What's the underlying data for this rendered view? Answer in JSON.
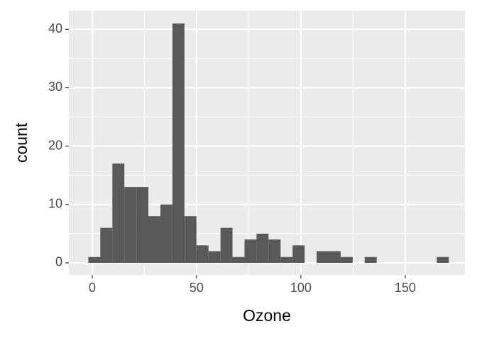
{
  "chart_data": {
    "type": "histogram",
    "x_label": "Ozone",
    "y_label": "count",
    "bins": [
      -1.88,
      3.88,
      9.64,
      15.4,
      21.16,
      26.91,
      32.67,
      38.43,
      44.19,
      49.95,
      55.71,
      61.47,
      67.22,
      72.98,
      78.74,
      84.5,
      90.26,
      96.02,
      101.78,
      107.53,
      113.29,
      119.05,
      124.81,
      130.57,
      136.33,
      142.09,
      147.84,
      153.6,
      159.36,
      165.12,
      170.88
    ],
    "values": [
      1,
      6,
      17,
      13,
      13,
      8,
      10,
      41,
      8,
      3,
      2,
      6,
      1,
      4,
      5,
      4,
      1,
      3,
      0,
      2,
      2,
      1,
      0,
      1,
      0,
      0,
      0,
      0,
      0,
      1
    ],
    "color": "#595959",
    "xlim": [
      -11.2,
      178.6
    ],
    "ylim": [
      -2.07,
      43.2
    ],
    "xticks": [
      0,
      50,
      100,
      150
    ],
    "yticks": [
      0,
      10,
      20,
      30,
      40
    ],
    "x_minor_breaks": [
      25,
      75,
      125
    ],
    "y_minor_breaks": [
      5,
      15,
      25,
      35
    ],
    "grid": true
  }
}
